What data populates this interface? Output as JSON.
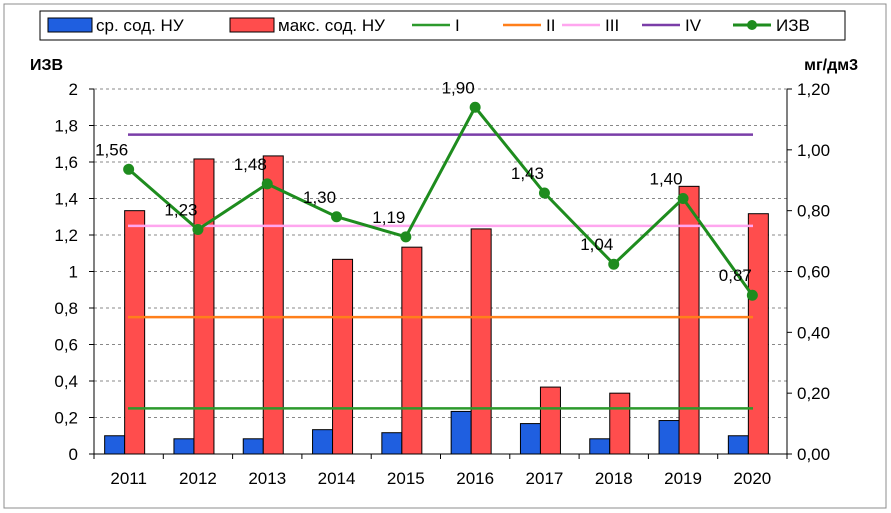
{
  "chart_data": {
    "type": "bar",
    "categories": [
      "2011",
      "2012",
      "2013",
      "2014",
      "2015",
      "2016",
      "2017",
      "2018",
      "2019",
      "2020"
    ],
    "y_left_label": "ИЗВ",
    "y_right_label": "мг/дм3",
    "y_left_range": [
      0,
      2
    ],
    "y_left_ticks": [
      "0",
      "0,2",
      "0,4",
      "0,6",
      "0,8",
      "1",
      "1,2",
      "1,4",
      "1,6",
      "1,8",
      "2"
    ],
    "y_right_range": [
      0,
      1.2
    ],
    "y_right_ticks": [
      "0,00",
      "0,20",
      "0,40",
      "0,60",
      "0,80",
      "1,00",
      "1,20"
    ],
    "grid": true,
    "legend_position": "top",
    "bar_series": [
      {
        "name": "ср. сод. НУ",
        "color": "#1f5fe0",
        "axis": "right",
        "values": [
          0.06,
          0.05,
          0.05,
          0.08,
          0.07,
          0.14,
          0.1,
          0.05,
          0.11,
          0.06
        ]
      },
      {
        "name": "макс. сод. НУ",
        "color": "#ff4d4d",
        "axis": "right",
        "values": [
          0.8,
          0.97,
          0.98,
          0.64,
          0.68,
          0.74,
          0.22,
          0.2,
          0.88,
          0.79
        ]
      }
    ],
    "reference_lines": [
      {
        "name": "I",
        "color": "#2c9a2c",
        "value": 0.25
      },
      {
        "name": "II",
        "color": "#ff7f1a",
        "value": 0.75
      },
      {
        "name": "III",
        "color": "#ffa6ef",
        "value": 1.25
      },
      {
        "name": "IV",
        "color": "#7a3da8",
        "value": 1.75
      }
    ],
    "line_series": {
      "name": "ИЗВ",
      "color": "#1e8c1e",
      "axis": "left",
      "values": [
        1.56,
        1.23,
        1.48,
        1.3,
        1.19,
        1.9,
        1.43,
        1.04,
        1.4,
        0.87
      ],
      "labels": [
        "1,56",
        "1,23",
        "1,48",
        "1,30",
        "1,19",
        "1,90",
        "1,43",
        "1,04",
        "1,40",
        "0,87"
      ]
    }
  }
}
